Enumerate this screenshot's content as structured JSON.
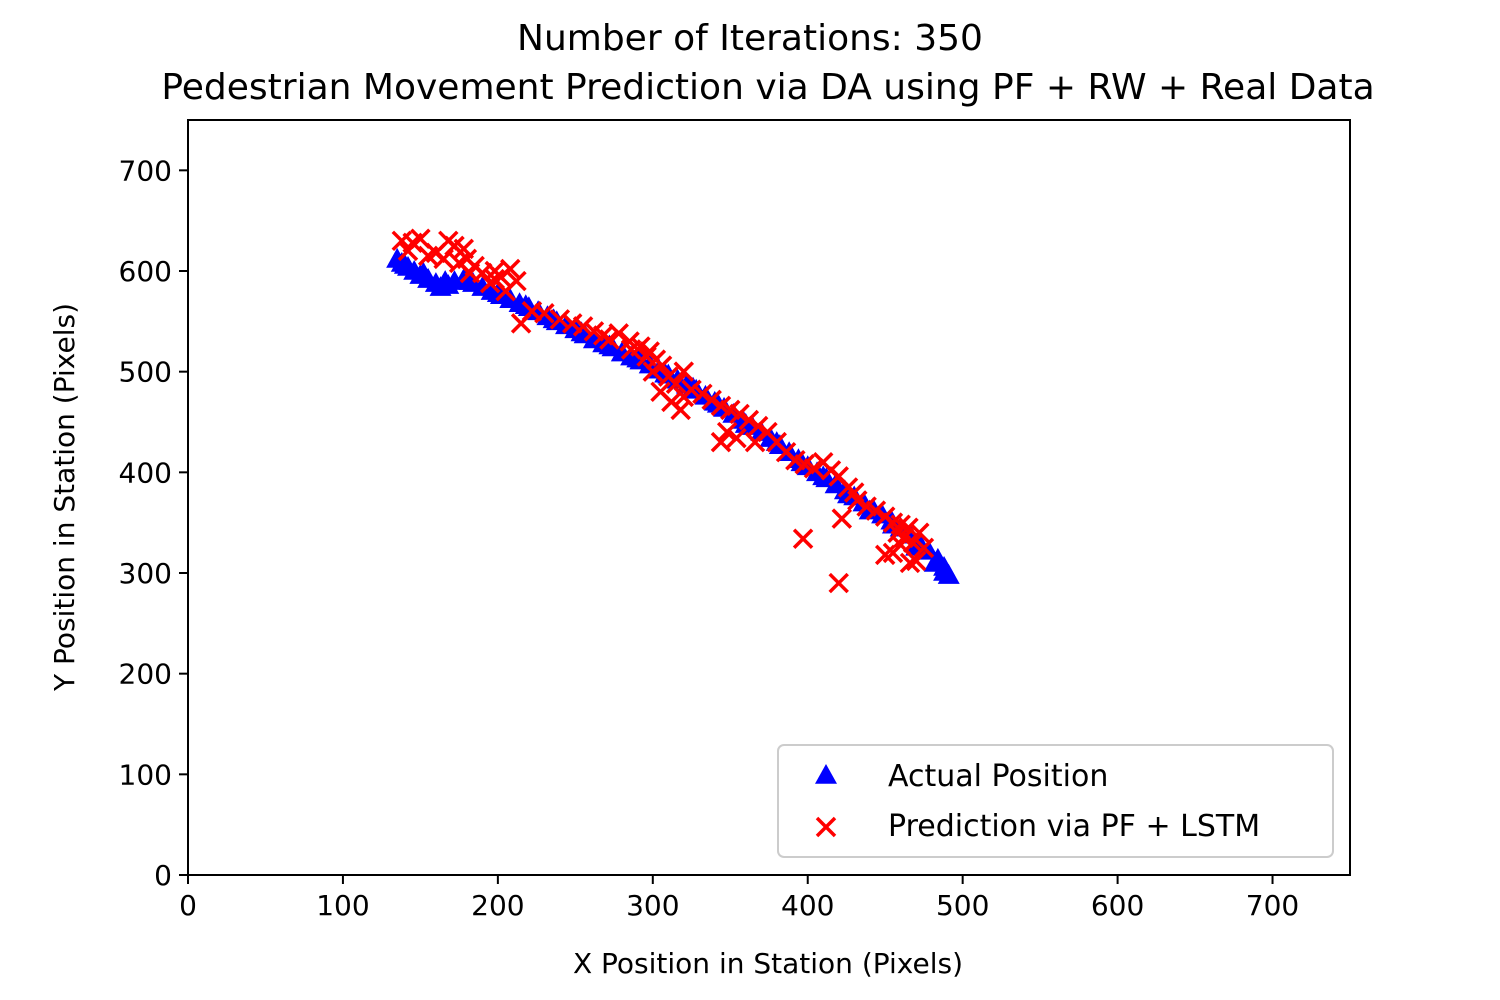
{
  "chart_data": {
    "type": "scatter",
    "title": "Number of Iterations: 350",
    "subtitle": "Pedestrian Movement Prediction via DA using PF + RW + Real Data",
    "xlabel": "X Position in Station (Pixels)",
    "ylabel": "Y Position in Station (Pixels)",
    "xlim": [
      0,
      750
    ],
    "ylim": [
      0,
      750
    ],
    "xticks": [
      "0",
      "100",
      "200",
      "300",
      "400",
      "500",
      "600",
      "700"
    ],
    "yticks": [
      "0",
      "100",
      "200",
      "300",
      "400",
      "500",
      "600",
      "700"
    ],
    "grid": false,
    "legend_position": "bottom-right",
    "series": [
      {
        "name": "Actual Position",
        "marker": "triangle",
        "color": "#0000ff",
        "points": [
          [
            135,
            612
          ],
          [
            138,
            608
          ],
          [
            142,
            604
          ],
          [
            146,
            600
          ],
          [
            150,
            596
          ],
          [
            155,
            592
          ],
          [
            160,
            588
          ],
          [
            163,
            584
          ],
          [
            168,
            586
          ],
          [
            172,
            590
          ],
          [
            178,
            592
          ],
          [
            184,
            588
          ],
          [
            190,
            584
          ],
          [
            196,
            580
          ],
          [
            202,
            576
          ],
          [
            208,
            572
          ],
          [
            214,
            568
          ],
          [
            220,
            564
          ],
          [
            226,
            560
          ],
          [
            232,
            555
          ],
          [
            238,
            550
          ],
          [
            244,
            546
          ],
          [
            250,
            542
          ],
          [
            256,
            537
          ],
          [
            262,
            532
          ],
          [
            268,
            528
          ],
          [
            274,
            524
          ],
          [
            280,
            519
          ],
          [
            286,
            515
          ],
          [
            292,
            511
          ],
          [
            298,
            507
          ],
          [
            304,
            502
          ],
          [
            310,
            497
          ],
          [
            316,
            492
          ],
          [
            322,
            487
          ],
          [
            328,
            482
          ],
          [
            334,
            476
          ],
          [
            340,
            470
          ],
          [
            346,
            464
          ],
          [
            352,
            458
          ],
          [
            358,
            452
          ],
          [
            364,
            446
          ],
          [
            370,
            440
          ],
          [
            376,
            434
          ],
          [
            382,
            427
          ],
          [
            388,
            420
          ],
          [
            394,
            413
          ],
          [
            400,
            406
          ],
          [
            406,
            400
          ],
          [
            412,
            394
          ],
          [
            418,
            388
          ],
          [
            424,
            382
          ],
          [
            430,
            376
          ],
          [
            436,
            370
          ],
          [
            442,
            364
          ],
          [
            448,
            358
          ],
          [
            454,
            352
          ],
          [
            460,
            345
          ],
          [
            466,
            338
          ],
          [
            472,
            330
          ],
          [
            478,
            322
          ],
          [
            484,
            314
          ],
          [
            488,
            306
          ],
          [
            491,
            298
          ],
          [
            488,
            301
          ],
          [
            482,
            310
          ],
          [
            470,
            326
          ],
          [
            455,
            348
          ],
          [
            440,
            362
          ],
          [
            426,
            378
          ],
          [
            410,
            396
          ],
          [
            396,
            410
          ],
          [
            380,
            430
          ],
          [
            360,
            448
          ],
          [
            342,
            468
          ],
          [
            326,
            484
          ],
          [
            308,
            498
          ],
          [
            290,
            513
          ],
          [
            272,
            526
          ],
          [
            254,
            539
          ],
          [
            236,
            552
          ],
          [
            218,
            566
          ],
          [
            200,
            578
          ],
          [
            182,
            590
          ],
          [
            166,
            590
          ],
          [
            152,
            598
          ],
          [
            140,
            606
          ]
        ]
      },
      {
        "name": "Prediction via PF + LSTM",
        "marker": "x",
        "color": "#ff0000",
        "points": [
          [
            138,
            630
          ],
          [
            145,
            628
          ],
          [
            150,
            632
          ],
          [
            142,
            620
          ],
          [
            155,
            615
          ],
          [
            165,
            612
          ],
          [
            172,
            625
          ],
          [
            178,
            622
          ],
          [
            168,
            630
          ],
          [
            175,
            608
          ],
          [
            180,
            612
          ],
          [
            185,
            605
          ],
          [
            190,
            598
          ],
          [
            198,
            600
          ],
          [
            202,
            594
          ],
          [
            208,
            602
          ],
          [
            212,
            590
          ],
          [
            205,
            580
          ],
          [
            195,
            588
          ],
          [
            215,
            548
          ],
          [
            222,
            560
          ],
          [
            230,
            558
          ],
          [
            240,
            552
          ],
          [
            248,
            548
          ],
          [
            255,
            545
          ],
          [
            262,
            540
          ],
          [
            268,
            536
          ],
          [
            272,
            532
          ],
          [
            278,
            538
          ],
          [
            285,
            530
          ],
          [
            292,
            525
          ],
          [
            298,
            520
          ],
          [
            302,
            512
          ],
          [
            306,
            506
          ],
          [
            300,
            500
          ],
          [
            296,
            515
          ],
          [
            310,
            495
          ],
          [
            315,
            488
          ],
          [
            320,
            475
          ],
          [
            312,
            470
          ],
          [
            318,
            462
          ],
          [
            305,
            480
          ],
          [
            325,
            482
          ],
          [
            332,
            478
          ],
          [
            338,
            472
          ],
          [
            344,
            466
          ],
          [
            350,
            462
          ],
          [
            356,
            458
          ],
          [
            362,
            452
          ],
          [
            348,
            440
          ],
          [
            354,
            434
          ],
          [
            344,
            430
          ],
          [
            368,
            446
          ],
          [
            374,
            440
          ],
          [
            380,
            430
          ],
          [
            386,
            420
          ],
          [
            392,
            412
          ],
          [
            398,
            408
          ],
          [
            404,
            404
          ],
          [
            410,
            410
          ],
          [
            415,
            402
          ],
          [
            420,
            396
          ],
          [
            426,
            385
          ],
          [
            432,
            372
          ],
          [
            438,
            366
          ],
          [
            444,
            362
          ],
          [
            450,
            356
          ],
          [
            455,
            350
          ],
          [
            460,
            348
          ],
          [
            465,
            345
          ],
          [
            458,
            340
          ],
          [
            462,
            335
          ],
          [
            468,
            330
          ],
          [
            455,
            320
          ],
          [
            450,
            318
          ],
          [
            466,
            310
          ],
          [
            470,
            312
          ],
          [
            475,
            325
          ],
          [
            472,
            340
          ],
          [
            460,
            328
          ],
          [
            397,
            334
          ],
          [
            420,
            290
          ],
          [
            422,
            354
          ],
          [
            430,
            380
          ],
          [
            160,
            618
          ],
          [
            182,
            598
          ],
          [
            198,
            592
          ],
          [
            286,
            522
          ],
          [
            320,
            500
          ],
          [
            366,
            430
          ]
        ]
      }
    ]
  }
}
